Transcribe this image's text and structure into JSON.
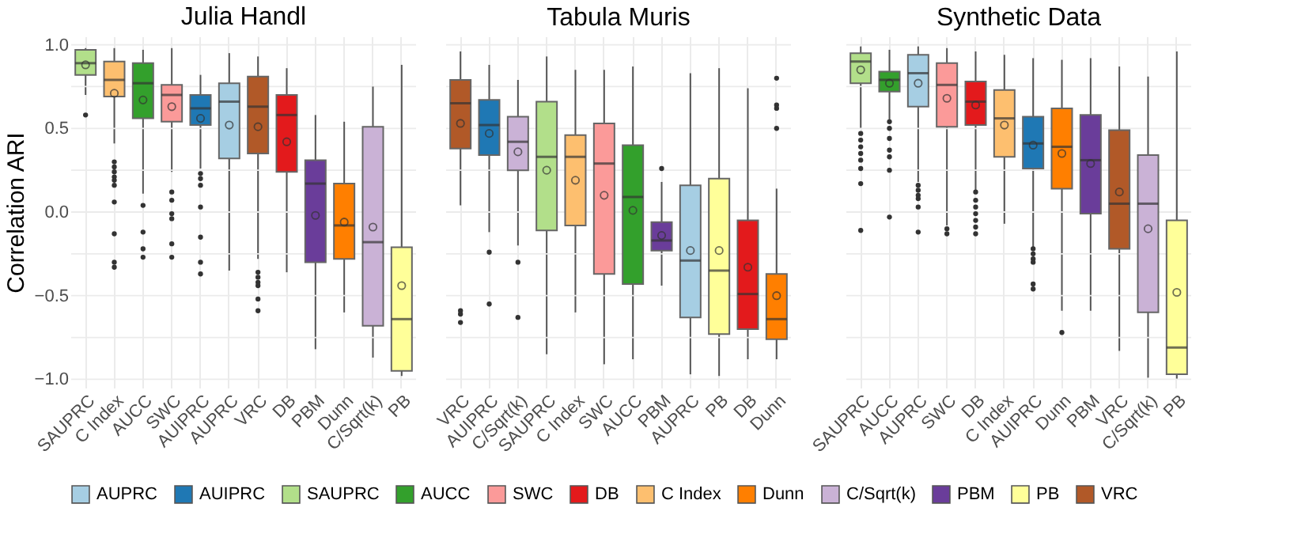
{
  "chart_data": [
    {
      "type": "box",
      "title": "Julia Handl",
      "ylabel": "Correlation ARI",
      "legend": "bottom",
      "grid": true,
      "ylim": [
        -1.05,
        1.05
      ],
      "yticks": [
        {
          "value": -1,
          "label": "−1.0"
        },
        {
          "value": -0.75,
          "label": null
        },
        {
          "value": -0.5,
          "label": "−0.5"
        },
        {
          "value": -0.25,
          "label": null
        },
        {
          "value": 0,
          "label": "0.0"
        },
        {
          "value": 0.25,
          "label": null
        },
        {
          "value": 0.5,
          "label": "0.5"
        },
        {
          "value": 0.75,
          "label": null
        },
        {
          "value": 1,
          "label": "1.0"
        }
      ],
      "categories": [
        "SAUPRC",
        "C Index",
        "AUCC",
        "SWC",
        "AUIPRC",
        "AUPRC",
        "VRC",
        "DB",
        "PBM",
        "Dunn",
        "C/Sqrt(k)",
        "PB"
      ],
      "series": [
        {
          "name": "AUPRC",
          "color": "#a6cee3",
          "x": [
            "AUPRC"
          ],
          "boxes": [
            {
              "low": -0.35,
              "q1": 0.32,
              "median": 0.66,
              "q3": 0.77,
              "high": 0.95,
              "mean": 0.52
            }
          ]
        },
        {
          "name": "AUIPRC",
          "color": "#1f78b4",
          "x": [
            "AUIPRC"
          ],
          "boxes": [
            {
              "low": 0.26,
              "q1": 0.52,
              "median": 0.62,
              "q3": 0.7,
              "high": 0.82,
              "mean": 0.56,
              "outliers": [
                0.23,
                0.2,
                0.16,
                0.03,
                -0.15,
                -0.3,
                -0.37
              ]
            }
          ]
        },
        {
          "name": "SAUPRC",
          "color": "#b2df8a",
          "x": [
            "SAUPRC"
          ],
          "boxes": [
            {
              "low": 0.7,
              "q1": 0.82,
              "median": 0.89,
              "q3": 0.97,
              "high": 0.98,
              "mean": 0.88,
              "outliers": [
                0.58
              ]
            }
          ]
        },
        {
          "name": "AUCC",
          "color": "#33a02c",
          "x": [
            "AUCC"
          ],
          "boxes": [
            {
              "low": 0.11,
              "q1": 0.56,
              "median": 0.77,
              "q3": 0.89,
              "high": 0.97,
              "mean": 0.67,
              "outliers": [
                0.04,
                -0.12,
                -0.22,
                -0.27
              ]
            }
          ]
        },
        {
          "name": "SWC",
          "color": "#fb9a99",
          "x": [
            "SWC"
          ],
          "boxes": [
            {
              "low": 0.24,
              "q1": 0.54,
              "median": 0.7,
              "q3": 0.76,
              "high": 0.98,
              "mean": 0.63,
              "outliers": [
                0.12,
                0.07,
                -0.01,
                -0.04,
                -0.19,
                -0.27
              ]
            }
          ]
        },
        {
          "name": "DB",
          "color": "#e31a1c",
          "x": [
            "DB"
          ],
          "boxes": [
            {
              "low": -0.36,
              "q1": 0.24,
              "median": 0.58,
              "q3": 0.7,
              "high": 0.86,
              "mean": 0.42
            }
          ]
        },
        {
          "name": "C Index",
          "color": "#fdbf6f",
          "x": [
            "C Index"
          ],
          "boxes": [
            {
              "low": 0.41,
              "q1": 0.69,
              "median": 0.79,
              "q3": 0.9,
              "high": 0.98,
              "mean": 0.71,
              "outliers": [
                0.3,
                0.27,
                0.24,
                0.21,
                0.19,
                0.16,
                0.06,
                -0.13,
                -0.3,
                -0.33
              ]
            }
          ]
        },
        {
          "name": "Dunn",
          "color": "#ff7f00",
          "x": [
            "Dunn"
          ],
          "boxes": [
            {
              "low": -0.6,
              "q1": -0.28,
              "median": -0.08,
              "q3": 0.17,
              "high": 0.54,
              "mean": -0.06
            }
          ]
        },
        {
          "name": "C/Sqrt(k)",
          "color": "#cab2d6",
          "x": [
            "C/Sqrt(k)"
          ],
          "boxes": [
            {
              "low": -0.87,
              "q1": -0.68,
              "median": -0.18,
              "q3": 0.51,
              "high": 0.75,
              "mean": -0.09
            }
          ]
        },
        {
          "name": "PBM",
          "color": "#6a3d9a",
          "x": [
            "PBM"
          ],
          "boxes": [
            {
              "low": -0.82,
              "q1": -0.3,
              "median": 0.17,
              "q3": 0.31,
              "high": 0.58,
              "mean": -0.02
            }
          ]
        },
        {
          "name": "PB",
          "color": "#ffff99",
          "x": [
            "PB"
          ],
          "boxes": [
            {
              "low": -0.98,
              "q1": -0.95,
              "median": -0.64,
              "q3": -0.21,
              "high": 0.88,
              "mean": -0.44
            }
          ]
        },
        {
          "name": "VRC",
          "color": "#b15928",
          "x": [
            "VRC"
          ],
          "boxes": [
            {
              "low": -0.28,
              "q1": 0.35,
              "median": 0.63,
              "q3": 0.81,
              "high": 0.93,
              "mean": 0.51,
              "outliers": [
                -0.36,
                -0.39,
                -0.42,
                -0.44,
                -0.52,
                -0.59
              ]
            }
          ]
        }
      ]
    },
    {
      "type": "box",
      "title": "Tabula Muris",
      "legend": "bottom",
      "grid": true,
      "tick_labels": "x",
      "ylim": [
        -1.05,
        1.05
      ],
      "yticks": [
        -1,
        -0.75,
        -0.5,
        -0.25,
        0,
        0.25,
        0.5,
        0.75,
        1
      ],
      "categories": [
        "VRC",
        "AUIPRC",
        "C/Sqrt(k)",
        "SAUPRC",
        "C Index",
        "SWC",
        "AUCC",
        "PBM",
        "AUPRC",
        "PB",
        "DB",
        "Dunn"
      ],
      "series": [
        {
          "name": "AUPRC",
          "color": "#a6cee3",
          "x": [
            "AUPRC"
          ],
          "boxes": [
            {
              "low": -0.97,
              "q1": -0.63,
              "median": -0.29,
              "q3": 0.16,
              "high": 0.83,
              "mean": -0.23
            }
          ]
        },
        {
          "name": "AUIPRC",
          "color": "#1f78b4",
          "x": [
            "AUIPRC"
          ],
          "boxes": [
            {
              "low": -0.12,
              "q1": 0.34,
              "median": 0.52,
              "q3": 0.67,
              "high": 0.88,
              "mean": 0.47,
              "outliers": [
                -0.24,
                -0.55
              ]
            }
          ]
        },
        {
          "name": "SAUPRC",
          "color": "#b2df8a",
          "x": [
            "SAUPRC"
          ],
          "boxes": [
            {
              "low": -0.85,
              "q1": -0.11,
              "median": 0.33,
              "q3": 0.66,
              "high": 0.93,
              "mean": 0.25
            }
          ]
        },
        {
          "name": "AUCC",
          "color": "#33a02c",
          "x": [
            "AUCC"
          ],
          "boxes": [
            {
              "low": -0.88,
              "q1": -0.43,
              "median": 0.09,
              "q3": 0.4,
              "high": 0.87,
              "mean": 0.01
            }
          ]
        },
        {
          "name": "SWC",
          "color": "#fb9a99",
          "x": [
            "SWC"
          ],
          "boxes": [
            {
              "low": -0.91,
              "q1": -0.37,
              "median": 0.29,
              "q3": 0.53,
              "high": 0.85,
              "mean": 0.1
            }
          ]
        },
        {
          "name": "DB",
          "color": "#e31a1c",
          "x": [
            "DB"
          ],
          "boxes": [
            {
              "low": -0.88,
              "q1": -0.7,
              "median": -0.49,
              "q3": -0.05,
              "high": 0.74,
              "mean": -0.33
            }
          ]
        },
        {
          "name": "C Index",
          "color": "#fdbf6f",
          "x": [
            "C Index"
          ],
          "boxes": [
            {
              "low": -0.6,
              "q1": -0.08,
              "median": 0.33,
              "q3": 0.46,
              "high": 0.85,
              "mean": 0.19
            }
          ]
        },
        {
          "name": "Dunn",
          "color": "#ff7f00",
          "x": [
            "Dunn"
          ],
          "boxes": [
            {
              "low": -0.88,
              "q1": -0.76,
              "median": -0.64,
              "q3": -0.37,
              "high": 0.14,
              "mean": -0.5,
              "outliers": [
                0.8,
                0.64,
                0.62,
                0.5
              ]
            }
          ]
        },
        {
          "name": "C/Sqrt(k)",
          "color": "#cab2d6",
          "x": [
            "C/Sqrt(k)"
          ],
          "boxes": [
            {
              "low": -0.2,
              "q1": 0.25,
              "median": 0.42,
              "q3": 0.57,
              "high": 0.79,
              "mean": 0.36,
              "outliers": [
                -0.3,
                -0.63
              ]
            }
          ]
        },
        {
          "name": "PBM",
          "color": "#6a3d9a",
          "x": [
            "PBM"
          ],
          "boxes": [
            {
              "low": -0.44,
              "q1": -0.23,
              "median": -0.17,
              "q3": -0.06,
              "high": 0.18,
              "mean": -0.14,
              "outliers": [
                0.26
              ]
            }
          ]
        },
        {
          "name": "PB",
          "color": "#ffff99",
          "x": [
            "PB"
          ],
          "boxes": [
            {
              "low": -0.98,
              "q1": -0.73,
              "median": -0.35,
              "q3": 0.2,
              "high": 0.86,
              "mean": -0.23
            }
          ]
        },
        {
          "name": "VRC",
          "color": "#b15928",
          "x": [
            "VRC"
          ],
          "boxes": [
            {
              "low": 0.04,
              "q1": 0.38,
              "median": 0.65,
              "q3": 0.79,
              "high": 0.96,
              "mean": 0.53,
              "outliers": [
                -0.59,
                -0.61,
                -0.66
              ]
            }
          ]
        }
      ]
    },
    {
      "type": "box",
      "title": "Synthetic Data",
      "legend": "bottom",
      "grid": true,
      "tick_labels": "x",
      "ylim": [
        -1.05,
        1.05
      ],
      "yticks": [
        -1,
        -0.75,
        -0.5,
        -0.25,
        0,
        0.25,
        0.5,
        0.75,
        1
      ],
      "categories": [
        "SAUPRC",
        "AUCC",
        "AUPRC",
        "SWC",
        "DB",
        "C Index",
        "AUIPRC",
        "Dunn",
        "PBM",
        "VRC",
        "C/Sqrt(k)",
        "PB"
      ],
      "series": [
        {
          "name": "AUPRC",
          "color": "#a6cee3",
          "x": [
            "AUPRC"
          ],
          "boxes": [
            {
              "low": 0.18,
              "q1": 0.63,
              "median": 0.83,
              "q3": 0.94,
              "high": 0.99,
              "mean": 0.77,
              "outliers": [
                0.16,
                0.13,
                0.1,
                0.08,
                0.03,
                -0.12
              ]
            }
          ]
        },
        {
          "name": "AUIPRC",
          "color": "#1f78b4",
          "x": [
            "AUIPRC"
          ],
          "boxes": [
            {
              "low": -0.21,
              "q1": 0.26,
              "median": 0.41,
              "q3": 0.57,
              "high": 0.92,
              "mean": 0.4,
              "outliers": [
                -0.22,
                -0.25,
                -0.28,
                -0.3,
                -0.43,
                -0.46
              ]
            }
          ]
        },
        {
          "name": "SAUPRC",
          "color": "#b2df8a",
          "x": [
            "SAUPRC"
          ],
          "boxes": [
            {
              "low": 0.5,
              "q1": 0.77,
              "median": 0.9,
              "q3": 0.95,
              "high": 0.99,
              "mean": 0.85,
              "outliers": [
                0.47,
                0.43,
                0.39,
                0.35,
                0.31,
                0.26,
                0.17,
                -0.11
              ]
            }
          ]
        },
        {
          "name": "AUCC",
          "color": "#33a02c",
          "x": [
            "AUCC"
          ],
          "boxes": [
            {
              "low": 0.55,
              "q1": 0.72,
              "median": 0.79,
              "q3": 0.84,
              "high": 0.97,
              "mean": 0.77,
              "outliers": [
                0.54,
                0.5,
                0.44,
                0.37,
                0.33,
                0.25,
                -0.03
              ]
            }
          ]
        },
        {
          "name": "SWC",
          "color": "#fb9a99",
          "x": [
            "SWC"
          ],
          "boxes": [
            {
              "low": -0.08,
              "q1": 0.51,
              "median": 0.76,
              "q3": 0.89,
              "high": 0.98,
              "mean": 0.68,
              "outliers": [
                -0.1,
                -0.13
              ]
            }
          ]
        },
        {
          "name": "DB",
          "color": "#e31a1c",
          "x": [
            "DB"
          ],
          "boxes": [
            {
              "low": 0.13,
              "q1": 0.52,
              "median": 0.66,
              "q3": 0.78,
              "high": 0.96,
              "mean": 0.64,
              "outliers": [
                0.12,
                0.07,
                0.03,
                -0.01,
                -0.05,
                -0.09,
                -0.13
              ]
            }
          ]
        },
        {
          "name": "C Index",
          "color": "#fdbf6f",
          "x": [
            "C Index"
          ],
          "boxes": [
            {
              "low": -0.07,
              "q1": 0.33,
              "median": 0.56,
              "q3": 0.73,
              "high": 0.94,
              "mean": 0.52
            }
          ]
        },
        {
          "name": "Dunn",
          "color": "#ff7f00",
          "x": [
            "Dunn"
          ],
          "boxes": [
            {
              "low": -0.59,
              "q1": 0.14,
              "median": 0.39,
              "q3": 0.62,
              "high": 0.91,
              "mean": 0.35,
              "outliers": [
                -0.72
              ]
            }
          ]
        },
        {
          "name": "C/Sqrt(k)",
          "color": "#cab2d6",
          "x": [
            "C/Sqrt(k)"
          ],
          "boxes": [
            {
              "low": -0.99,
              "q1": -0.6,
              "median": 0.05,
              "q3": 0.34,
              "high": 0.81,
              "mean": -0.1
            }
          ]
        },
        {
          "name": "PBM",
          "color": "#6a3d9a",
          "x": [
            "PBM"
          ],
          "boxes": [
            {
              "low": -0.59,
              "q1": -0.01,
              "median": 0.31,
              "q3": 0.58,
              "high": 0.92,
              "mean": 0.29
            }
          ]
        },
        {
          "name": "PB",
          "color": "#ffff99",
          "x": [
            "PB"
          ],
          "boxes": [
            {
              "low": -1.0,
              "q1": -0.97,
              "median": -0.81,
              "q3": -0.05,
              "high": 0.96,
              "mean": -0.48
            }
          ]
        },
        {
          "name": "VRC",
          "color": "#b15928",
          "x": [
            "VRC"
          ],
          "boxes": [
            {
              "low": -0.83,
              "q1": -0.22,
              "median": 0.05,
              "q3": 0.49,
              "high": 0.87,
              "mean": 0.12
            }
          ]
        }
      ]
    }
  ]
}
